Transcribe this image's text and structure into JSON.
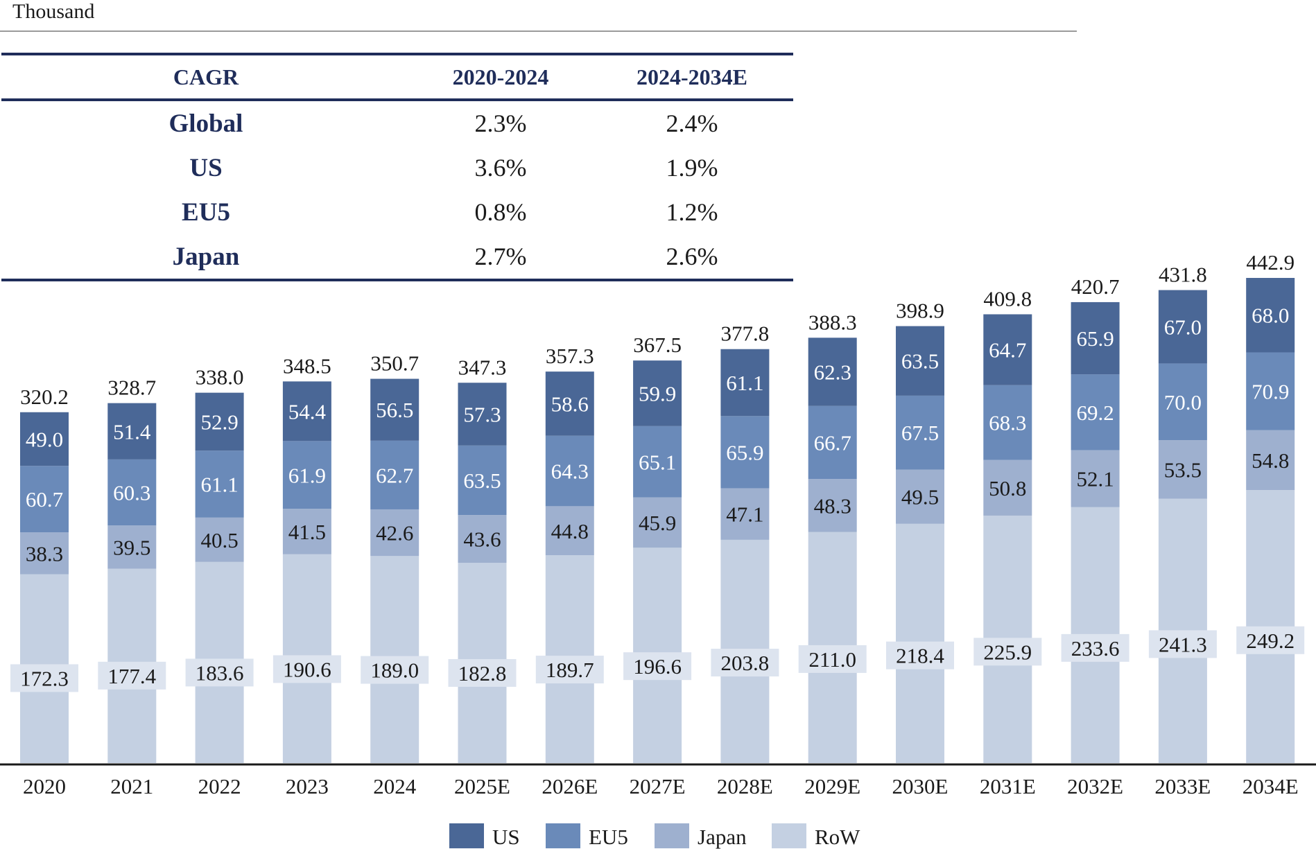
{
  "unit_label": "Thousand",
  "cagr_table": {
    "headers": [
      "CAGR",
      "2020-2024",
      "2024-2034E"
    ],
    "rows": [
      {
        "label": "Global",
        "v1": "2.3%",
        "v2": "2.4%"
      },
      {
        "label": "US",
        "v1": "3.6%",
        "v2": "1.9%"
      },
      {
        "label": "EU5",
        "v1": "0.8%",
        "v2": "1.2%"
      },
      {
        "label": "Japan",
        "v1": "2.7%",
        "v2": "2.6%"
      }
    ]
  },
  "chart_data": {
    "type": "bar",
    "stacked": true,
    "title": "",
    "xlabel": "",
    "ylabel": "Thousand",
    "ylim": [
      0,
      442.9
    ],
    "grid": false,
    "legend_position": "bottom-center",
    "categories": [
      "2020",
      "2021",
      "2022",
      "2023",
      "2024",
      "2025E",
      "2026E",
      "2027E",
      "2028E",
      "2029E",
      "2030E",
      "2031E",
      "2032E",
      "2033E",
      "2034E"
    ],
    "totals": [
      320.2,
      328.7,
      338.0,
      348.5,
      350.7,
      347.3,
      357.3,
      367.5,
      377.8,
      388.3,
      398.9,
      409.8,
      420.7,
      431.8,
      442.9
    ],
    "series": [
      {
        "name": "RoW",
        "color": "#c4d0e2",
        "label_color": "#1a1a1a",
        "values": [
          172.3,
          177.4,
          183.6,
          190.6,
          189.0,
          182.8,
          189.7,
          196.6,
          203.8,
          211.0,
          218.4,
          225.9,
          233.6,
          241.3,
          249.2
        ]
      },
      {
        "name": "Japan",
        "color": "#9eb0cf",
        "label_color": "#1a1a1a",
        "values": [
          38.3,
          39.5,
          40.5,
          41.5,
          42.6,
          43.6,
          44.8,
          45.9,
          47.1,
          48.3,
          49.5,
          50.8,
          52.1,
          53.5,
          54.8
        ]
      },
      {
        "name": "EU5",
        "color": "#6a8ab9",
        "label_color": "#ffffff",
        "values": [
          60.7,
          60.3,
          61.1,
          61.9,
          62.7,
          63.5,
          64.3,
          65.1,
          65.9,
          66.7,
          67.5,
          68.3,
          69.2,
          70.0,
          70.9
        ]
      },
      {
        "name": "US",
        "color": "#4a6796",
        "label_color": "#ffffff",
        "values": [
          49.0,
          51.4,
          52.9,
          54.4,
          56.5,
          57.3,
          58.6,
          59.9,
          61.1,
          62.3,
          63.5,
          64.7,
          65.9,
          67.0,
          68.0
        ]
      }
    ],
    "legend_order": [
      "US",
      "EU5",
      "Japan",
      "RoW"
    ]
  }
}
